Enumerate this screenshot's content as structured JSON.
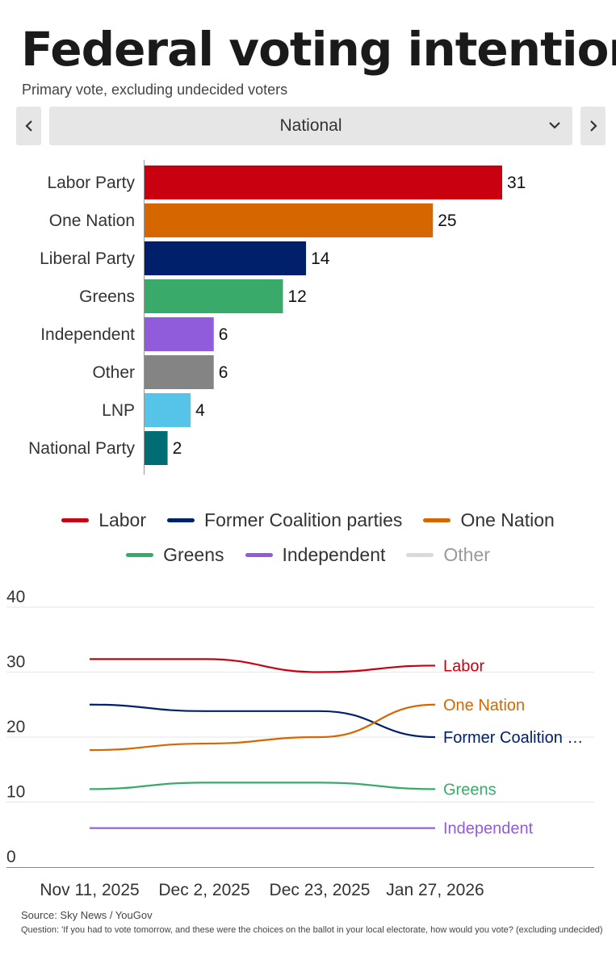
{
  "header": {
    "title": "Federal voting intention",
    "subtitle": "Primary vote, excluding undecided voters"
  },
  "selector": {
    "value": "National",
    "prev_icon": "chevron-left-icon",
    "next_icon": "chevron-right-icon",
    "dropdown_icon": "chevron-down-icon"
  },
  "chart_data": [
    {
      "type": "bar",
      "orientation": "horizontal",
      "categories": [
        "Labor Party",
        "One Nation",
        "Liberal Party",
        "Greens",
        "Independent",
        "Other",
        "LNP",
        "National Party"
      ],
      "values": [
        31,
        25,
        14,
        12,
        6,
        6,
        4,
        2
      ],
      "colors": [
        "#c8000f",
        "#d66700",
        "#00206b",
        "#3aaa6a",
        "#915cdc",
        "#848484",
        "#55c4e8",
        "#006d75"
      ],
      "xlim": [
        0,
        31
      ],
      "grid": false,
      "data_labels": true
    },
    {
      "type": "line",
      "x": [
        "Nov 11, 2025",
        "Dec 2, 2025",
        "Dec 23, 2025",
        "Jan 27, 2026"
      ],
      "ylim": [
        0,
        40
      ],
      "yticks": [
        0,
        10,
        20,
        30,
        40
      ],
      "grid": true,
      "legend": [
        {
          "name": "Labor",
          "color": "#c8000f"
        },
        {
          "name": "Former Coalition parties",
          "color": "#00206b"
        },
        {
          "name": "One Nation",
          "color": "#d66700"
        },
        {
          "name": "Greens",
          "color": "#3aaa6a"
        },
        {
          "name": "Independent",
          "color": "#915cdc"
        },
        {
          "name": "Other",
          "color": "#d9d9d9"
        }
      ],
      "series": [
        {
          "name": "Labor",
          "label": "Labor",
          "color": "#c8000f",
          "values": [
            32,
            32,
            30,
            31
          ]
        },
        {
          "name": "Former Coalition parties",
          "label": "Former Coalition …",
          "color": "#00206b",
          "values": [
            25,
            24,
            24,
            20
          ]
        },
        {
          "name": "One Nation",
          "label": "One Nation",
          "color": "#d66700",
          "values": [
            18,
            19,
            20,
            25
          ]
        },
        {
          "name": "Greens",
          "label": "Greens",
          "color": "#3aaa6a",
          "values": [
            12,
            13,
            13,
            12
          ]
        },
        {
          "name": "Independent",
          "label": "Independent",
          "color": "#915cdc",
          "values": [
            6,
            6,
            6,
            6
          ]
        }
      ]
    }
  ],
  "footer": {
    "source": "Source: Sky News / YouGov",
    "question": "Question: 'If you had to vote tomorrow, and these were the choices on the ballot in your local electorate, how would you vote? (excluding undecided)"
  }
}
